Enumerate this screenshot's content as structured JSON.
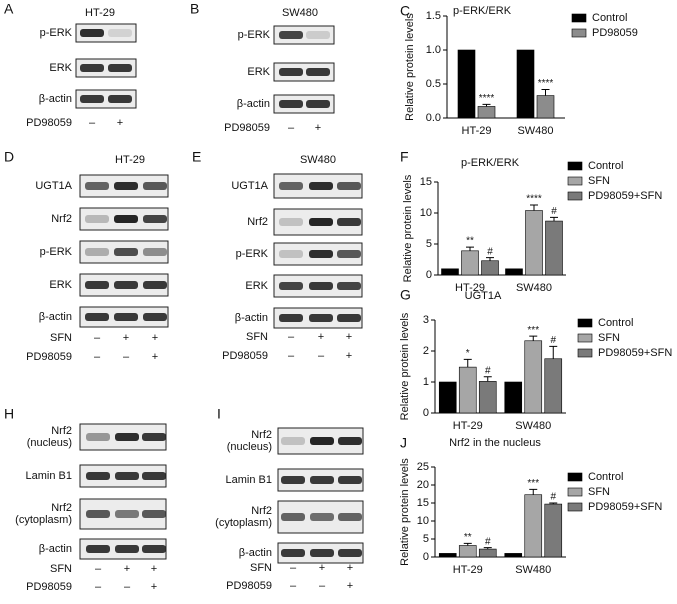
{
  "blots": [
    {
      "letter": "A",
      "title": "HT-29",
      "rows": [
        [
          "p-ERK"
        ],
        [
          "ERK"
        ],
        [
          "β-actin"
        ]
      ],
      "treatments": [
        {
          "name": "PD98059",
          "marks": [
            "–",
            "+"
          ]
        }
      ]
    },
    {
      "letter": "B",
      "title": "SW480",
      "rows": [
        [
          "p-ERK"
        ],
        [
          "ERK"
        ],
        [
          "β-actin"
        ]
      ],
      "treatments": [
        {
          "name": "PD98059",
          "marks": [
            "–",
            "+"
          ]
        }
      ]
    },
    {
      "letter": "D",
      "title": "HT-29",
      "rows": [
        [
          "UGT1A"
        ],
        [
          "Nrf2"
        ],
        [
          "p-ERK"
        ],
        [
          "ERK"
        ],
        [
          "β-actin"
        ]
      ],
      "treatments": [
        {
          "name": "SFN",
          "marks": [
            "–",
            "+",
            "+"
          ]
        },
        {
          "name": "PD98059",
          "marks": [
            "–",
            "–",
            "+"
          ]
        }
      ]
    },
    {
      "letter": "E",
      "title": "SW480",
      "rows": [
        [
          "UGT1A"
        ],
        [
          "Nrf2"
        ],
        [
          "p-ERK"
        ],
        [
          "ERK"
        ],
        [
          "β-actin"
        ]
      ],
      "treatments": [
        {
          "name": "SFN",
          "marks": [
            "–",
            "+",
            "+"
          ]
        },
        {
          "name": "PD98059",
          "marks": [
            "–",
            "–",
            "+"
          ]
        }
      ]
    },
    {
      "letter": "H",
      "rows": [
        [
          "Nrf2",
          "(nucleus)"
        ],
        [
          "Lamin B1"
        ],
        [
          "Nrf2",
          "(cytoplasm)"
        ],
        [
          "β-actin"
        ]
      ],
      "treatments": [
        {
          "name": "SFN",
          "marks": [
            "–",
            "+",
            "+"
          ]
        },
        {
          "name": "PD98059",
          "marks": [
            "–",
            "–",
            "+"
          ]
        }
      ]
    },
    {
      "letter": "I",
      "rows": [
        [
          "Nrf2",
          "(nucleus)"
        ],
        [
          "Lamin B1"
        ],
        [
          "Nrf2",
          "(cytoplasm)"
        ],
        [
          "β-actin"
        ]
      ],
      "treatments": [
        {
          "name": "SFN",
          "marks": [
            "–",
            "+",
            "+"
          ]
        },
        {
          "name": "PD98059",
          "marks": [
            "–",
            "–",
            "+"
          ]
        }
      ]
    }
  ],
  "chart_data": [
    {
      "type": "bar",
      "letter": "C",
      "title": "p-ERK/ERK",
      "y_label": "Relative protein levels",
      "categories": [
        "HT-29",
        "SW480"
      ],
      "series": [
        {
          "name": "Control",
          "color": "#000000",
          "values": [
            1,
            1
          ]
        },
        {
          "name": "PD98059",
          "color": "#8c8c8c",
          "values": [
            0.17,
            0.33
          ],
          "errors": [
            0.03,
            0.09
          ],
          "annotations": [
            "****",
            "****"
          ]
        }
      ],
      "ylim": [
        0,
        1.5
      ],
      "yticks": [
        {
          "value": 0,
          "label": "0.0"
        },
        0.5,
        {
          "value": 1,
          "label": "1.0"
        },
        1.5
      ]
    },
    {
      "type": "bar",
      "letter": "F",
      "title": "p-ERK/ERK",
      "y_label": "Relative protein levels",
      "categories": [
        "HT-29",
        "SW480"
      ],
      "series": [
        {
          "name": "Control",
          "color": "#000000",
          "values": [
            1,
            1
          ]
        },
        {
          "name": "SFN",
          "color": "#a6a6a6",
          "values": [
            3.9,
            10.4
          ],
          "errors": [
            0.6,
            0.9
          ],
          "annotations": [
            "**",
            "****"
          ]
        },
        {
          "name": "PD98059+SFN",
          "color": "#7a7a7a",
          "values": [
            2.3,
            8.7
          ],
          "errors": [
            0.5,
            0.6
          ],
          "annotations": [
            "#",
            "#"
          ]
        }
      ],
      "ylim": [
        0,
        15
      ],
      "yticks": [
        0,
        5,
        10,
        15
      ]
    },
    {
      "type": "bar",
      "letter": "G",
      "title": "UGT1A",
      "y_label": "Relative protein levels",
      "categories": [
        "HT-29",
        "SW480"
      ],
      "series": [
        {
          "name": "Control",
          "color": "#000000",
          "values": [
            1,
            1
          ]
        },
        {
          "name": "SFN",
          "color": "#a6a6a6",
          "values": [
            1.48,
            2.33
          ],
          "errors": [
            0.25,
            0.15
          ],
          "annotations": [
            "*",
            "***"
          ]
        },
        {
          "name": "PD98059+SFN",
          "color": "#7a7a7a",
          "values": [
            1.02,
            1.75
          ],
          "errors": [
            0.15,
            0.4
          ],
          "annotations": [
            "#",
            "#"
          ]
        }
      ],
      "ylim": [
        0,
        3
      ],
      "yticks": [
        0,
        1,
        2,
        3
      ]
    },
    {
      "type": "bar",
      "letter": "J",
      "title": "Nrf2 in the nucleus",
      "y_label": "Relative protein levels",
      "categories": [
        "HT-29",
        "SW480"
      ],
      "series": [
        {
          "name": "Control",
          "color": "#000000",
          "values": [
            1,
            1
          ]
        },
        {
          "name": "SFN",
          "color": "#a6a6a6",
          "values": [
            3.2,
            17.3
          ],
          "errors": [
            0.6,
            1.5
          ],
          "annotations": [
            "**",
            "***"
          ]
        },
        {
          "name": "PD98059+SFN",
          "color": "#7a7a7a",
          "values": [
            2.2,
            14.7
          ],
          "errors": [
            0.4,
            0.3
          ],
          "annotations": [
            "#",
            "#"
          ]
        }
      ],
      "ylim": [
        0,
        25
      ],
      "yticks": [
        0,
        5,
        10,
        15,
        20,
        25
      ]
    }
  ]
}
